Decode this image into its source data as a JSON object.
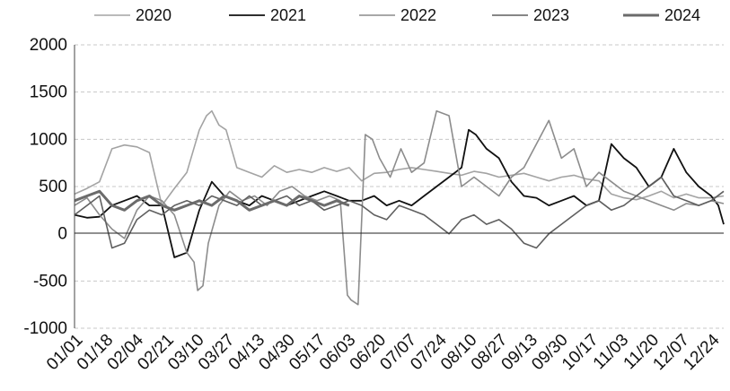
{
  "chart_data": {
    "type": "line",
    "title": "",
    "xlabel": "",
    "ylabel": "",
    "ylim": [
      -1000,
      2000
    ],
    "yticks": [
      -1000,
      -500,
      0,
      500,
      1000,
      1500,
      2000
    ],
    "xlim": [
      1,
      365
    ],
    "xticks": [
      {
        "label": "01/01",
        "day": 1
      },
      {
        "label": "01/18",
        "day": 18
      },
      {
        "label": "02/04",
        "day": 35
      },
      {
        "label": "02/21",
        "day": 52
      },
      {
        "label": "03/10",
        "day": 69
      },
      {
        "label": "03/27",
        "day": 86
      },
      {
        "label": "04/13",
        "day": 103
      },
      {
        "label": "04/30",
        "day": 120
      },
      {
        "label": "05/17",
        "day": 137
      },
      {
        "label": "06/03",
        "day": 154
      },
      {
        "label": "06/20",
        "day": 171
      },
      {
        "label": "07/07",
        "day": 188
      },
      {
        "label": "07/24",
        "day": 205
      },
      {
        "label": "08/10",
        "day": 222
      },
      {
        "label": "08/27",
        "day": 239
      },
      {
        "label": "09/13",
        "day": 256
      },
      {
        "label": "09/30",
        "day": 273
      },
      {
        "label": "10/17",
        "day": 290
      },
      {
        "label": "11/03",
        "day": 307
      },
      {
        "label": "11/20",
        "day": 324
      },
      {
        "label": "12/07",
        "day": 341
      },
      {
        "label": "12/24",
        "day": 358
      }
    ],
    "grid": true,
    "legend_position": "top",
    "series": [
      {
        "name": "2020",
        "color": "#a3a3a3",
        "width": 1.6,
        "x": [
          1,
          8,
          15,
          22,
          29,
          36,
          43,
          50,
          57,
          64,
          71,
          75,
          78,
          82,
          86,
          92,
          99,
          106,
          113,
          120,
          127,
          134,
          141,
          148,
          155,
          162,
          169,
          176,
          183,
          190,
          197,
          204,
          211,
          218,
          225,
          232,
          239,
          246,
          253,
          260,
          267,
          274,
          281,
          288,
          295,
          302,
          309,
          316,
          323,
          330,
          337,
          344,
          351,
          358,
          365
        ],
        "y": [
          420,
          480,
          550,
          900,
          940,
          920,
          860,
          300,
          480,
          650,
          1100,
          1250,
          1300,
          1150,
          1100,
          700,
          650,
          600,
          720,
          650,
          680,
          650,
          700,
          660,
          700,
          560,
          640,
          650,
          680,
          700,
          680,
          660,
          640,
          620,
          660,
          640,
          600,
          620,
          640,
          600,
          560,
          600,
          620,
          580,
          560,
          420,
          380,
          360,
          400,
          450,
          380,
          420,
          380,
          380,
          400
        ]
      },
      {
        "name": "2021",
        "color": "#111111",
        "width": 1.8,
        "x": [
          1,
          8,
          15,
          22,
          29,
          36,
          43,
          50,
          57,
          64,
          71,
          78,
          85,
          92,
          99,
          106,
          113,
          120,
          127,
          134,
          141,
          148,
          155,
          162,
          169,
          176,
          183,
          190,
          197,
          204,
          211,
          218,
          222,
          226,
          232,
          239,
          246,
          253,
          260,
          267,
          274,
          281,
          288,
          295,
          302,
          309,
          316,
          323,
          330,
          337,
          344,
          351,
          358,
          362,
          365
        ],
        "y": [
          200,
          170,
          180,
          300,
          350,
          400,
          300,
          300,
          -250,
          -200,
          250,
          550,
          400,
          350,
          300,
          400,
          350,
          300,
          350,
          400,
          450,
          400,
          350,
          350,
          400,
          300,
          350,
          300,
          400,
          500,
          600,
          700,
          1100,
          1050,
          900,
          800,
          550,
          400,
          380,
          300,
          350,
          400,
          300,
          350,
          950,
          800,
          700,
          500,
          600,
          900,
          650,
          500,
          400,
          300,
          100
        ]
      },
      {
        "name": "2022",
        "color": "#8c8c8c",
        "width": 1.6,
        "x": [
          1,
          8,
          15,
          22,
          29,
          36,
          43,
          50,
          57,
          64,
          68,
          70,
          73,
          76,
          82,
          88,
          95,
          102,
          109,
          116,
          123,
          130,
          137,
          144,
          150,
          154,
          156,
          160,
          164,
          168,
          172,
          178,
          184,
          190,
          197,
          204,
          211,
          218,
          225,
          232,
          239,
          246,
          253,
          260,
          267,
          274,
          281,
          288,
          295,
          302,
          309,
          316,
          323,
          330,
          337,
          344,
          351,
          358,
          365
        ],
        "y": [
          300,
          380,
          200,
          50,
          -50,
          250,
          400,
          350,
          200,
          -200,
          -300,
          -600,
          -550,
          -100,
          300,
          450,
          350,
          400,
          300,
          450,
          500,
          400,
          350,
          400,
          350,
          -650,
          -700,
          -750,
          1050,
          1000,
          800,
          600,
          900,
          650,
          750,
          1300,
          1250,
          500,
          600,
          500,
          400,
          600,
          700,
          950,
          1200,
          800,
          900,
          500,
          650,
          550,
          450,
          400,
          350,
          300,
          250,
          320,
          300,
          350,
          320
        ]
      },
      {
        "name": "2023",
        "color": "#5f5f5f",
        "width": 1.6,
        "x": [
          1,
          8,
          15,
          22,
          29,
          36,
          43,
          50,
          57,
          64,
          71,
          78,
          85,
          92,
          99,
          106,
          113,
          120,
          127,
          134,
          141,
          148,
          155,
          162,
          169,
          176,
          183,
          190,
          197,
          204,
          211,
          218,
          225,
          232,
          239,
          246,
          253,
          260,
          267,
          274,
          281,
          288,
          295,
          302,
          309,
          316,
          323,
          330,
          337,
          344,
          351,
          358,
          365
        ],
        "y": [
          200,
          300,
          400,
          -150,
          -100,
          150,
          250,
          200,
          300,
          350,
          300,
          400,
          350,
          300,
          400,
          300,
          350,
          400,
          300,
          350,
          250,
          300,
          350,
          300,
          200,
          150,
          300,
          250,
          200,
          100,
          0,
          150,
          200,
          100,
          150,
          50,
          -100,
          -150,
          0,
          100,
          200,
          300,
          350,
          250,
          300,
          400,
          500,
          600,
          400,
          350,
          300,
          350,
          450
        ]
      },
      {
        "name": "2024",
        "color": "#6b6b6b",
        "width": 3.0,
        "x": [
          1,
          8,
          15,
          22,
          29,
          36,
          43,
          50,
          57,
          64,
          71,
          78,
          85,
          92,
          99,
          106,
          113,
          120,
          127,
          134,
          141,
          148,
          155
        ],
        "y": [
          350,
          400,
          450,
          300,
          250,
          350,
          400,
          300,
          250,
          300,
          350,
          300,
          400,
          350,
          250,
          300,
          350,
          300,
          400,
          350,
          300,
          350,
          300
        ]
      }
    ]
  }
}
